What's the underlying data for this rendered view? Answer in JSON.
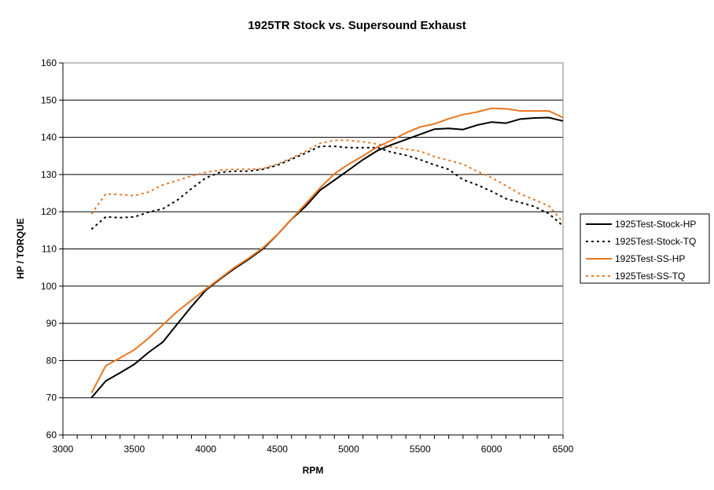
{
  "chart_data": {
    "type": "line",
    "title": "1925TR Stock vs. Supersound Exhaust",
    "xlabel": "RPM",
    "ylabel": "HP / TORQUE",
    "xlim": [
      3000,
      6500
    ],
    "ylim": [
      60,
      160
    ],
    "x_ticks": [
      "3000",
      "3500",
      "4000",
      "4500",
      "5000",
      "5500",
      "6000",
      "6500"
    ],
    "y_ticks": [
      "60",
      "70",
      "80",
      "90",
      "100",
      "110",
      "120",
      "130",
      "140",
      "150",
      "160"
    ],
    "grid": "horizontal",
    "legend_position": "right",
    "x": [
      3200,
      3300,
      3400,
      3500,
      3600,
      3700,
      3800,
      3900,
      4000,
      4100,
      4200,
      4300,
      4400,
      4500,
      4600,
      4700,
      4800,
      4900,
      5000,
      5100,
      5200,
      5300,
      5400,
      5500,
      5600,
      5700,
      5800,
      5900,
      6000,
      6100,
      6200,
      6300,
      6400,
      6500
    ],
    "series": [
      {
        "name": "1925Test-Stock-HP",
        "color": "#000000",
        "style": "solid",
        "values": [
          70,
          74.5,
          76.7,
          79,
          82.2,
          85,
          89.8,
          94.5,
          98.9,
          101.9,
          104.7,
          107.2,
          110,
          113.8,
          118,
          121.5,
          125.8,
          128.5,
          131.2,
          134,
          136.4,
          138,
          139.4,
          140.8,
          142.2,
          142.4,
          142.1,
          143.3,
          144.1,
          143.8,
          144.9,
          145.2,
          145.3,
          144.4
        ]
      },
      {
        "name": "1925Test-Stock-TQ",
        "color": "#000000",
        "style": "dotted",
        "values": [
          115.3,
          118.6,
          118.4,
          118.6,
          119.9,
          120.8,
          123.1,
          126.2,
          129.1,
          130.6,
          130.9,
          130.9,
          131.4,
          132.5,
          134.1,
          135.8,
          137.6,
          137.6,
          137.2,
          137.2,
          137.2,
          136,
          135.2,
          134,
          132.6,
          131.4,
          128.6,
          127.2,
          125.5,
          123.5,
          122.5,
          121.4,
          119.5,
          116.2
        ]
      },
      {
        "name": "1925Test-SS-HP",
        "color": "#e87722",
        "style": "solid",
        "values": [
          71.3,
          78.6,
          80.7,
          82.9,
          86,
          89.6,
          93.2,
          96.2,
          99.2,
          102.1,
          105,
          107.5,
          110.3,
          113.8,
          118,
          122.2,
          126.4,
          130.2,
          132.8,
          135,
          137.4,
          139.2,
          141.2,
          142.8,
          143.6,
          145,
          146.1,
          146.8,
          147.8,
          147.7,
          147.1,
          147.1,
          147.1,
          145.3
        ]
      },
      {
        "name": "1925Test-SS-TQ",
        "color": "#e87722",
        "style": "dotted",
        "values": [
          119.4,
          124.8,
          124.6,
          124.3,
          125.3,
          127.2,
          128.4,
          129.6,
          130.6,
          131.2,
          131.4,
          131.4,
          131.6,
          132.8,
          134.4,
          136.3,
          138.4,
          139.2,
          139.2,
          138.8,
          138.2,
          137.4,
          136.8,
          136.3,
          134.8,
          133.8,
          132.8,
          130.8,
          129.2,
          127,
          124.8,
          123.2,
          121.6,
          117.2
        ]
      }
    ]
  }
}
